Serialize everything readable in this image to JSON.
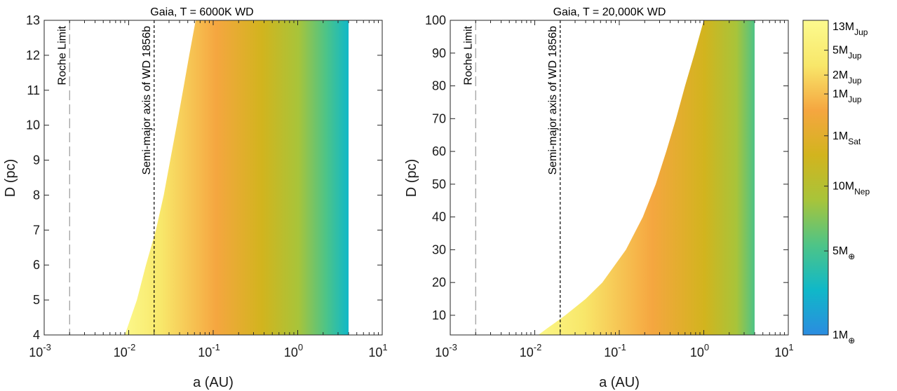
{
  "chart_data": [
    {
      "type": "heatmap",
      "title": "Gaia, T = 6000K WD",
      "xlabel": "a (AU)",
      "ylabel": "D (pc)",
      "xscale": "log",
      "xlim": [
        0.001,
        10
      ],
      "ylim": [
        4,
        13
      ],
      "xticks": [
        {
          "value": 0.001,
          "base": "10",
          "exp": "-3"
        },
        {
          "value": 0.01,
          "base": "10",
          "exp": "-2"
        },
        {
          "value": 0.1,
          "base": "10",
          "exp": "-1"
        },
        {
          "value": 1,
          "base": "10",
          "exp": "0"
        },
        {
          "value": 10,
          "base": "10",
          "exp": "1"
        }
      ],
      "yticks": [
        {
          "value": 4,
          "label": "4"
        },
        {
          "value": 5,
          "label": "5"
        },
        {
          "value": 6,
          "label": "6"
        },
        {
          "value": 7,
          "label": "7"
        },
        {
          "value": 8,
          "label": "8"
        },
        {
          "value": 9,
          "label": "9"
        },
        {
          "value": 10,
          "label": "10"
        },
        {
          "value": 11,
          "label": "11"
        },
        {
          "value": 12,
          "label": "12"
        },
        {
          "value": 13,
          "label": "13"
        }
      ],
      "filled_region": {
        "a_max": 4,
        "lower_boundary_a": [
          {
            "D": 4.0,
            "a": 0.009
          },
          {
            "D": 5.0,
            "a": 0.0125
          },
          {
            "D": 6.0,
            "a": 0.016
          },
          {
            "D": 7.0,
            "a": 0.021
          },
          {
            "D": 8.0,
            "a": 0.026
          },
          {
            "D": 9.0,
            "a": 0.031
          },
          {
            "D": 10.0,
            "a": 0.037
          },
          {
            "D": 11.0,
            "a": 0.044
          },
          {
            "D": 12.0,
            "a": 0.052
          },
          {
            "D": 13.0,
            "a": 0.062
          }
        ]
      },
      "vertical_lines": [
        {
          "x": 0.002,
          "label": "Roche Limit",
          "style": "long-dash",
          "color": "#999999"
        },
        {
          "x": 0.02,
          "label": "Semi-major axis of WD 1856b",
          "style": "short-dash",
          "color": "#000000"
        }
      ]
    },
    {
      "type": "heatmap",
      "title": "Gaia, T = 20,000K WD",
      "xlabel": "a (AU)",
      "ylabel": "D (pc)",
      "xscale": "log",
      "xlim": [
        0.001,
        10
      ],
      "ylim": [
        4,
        100
      ],
      "xticks": [
        {
          "value": 0.001,
          "base": "10",
          "exp": "-3"
        },
        {
          "value": 0.01,
          "base": "10",
          "exp": "-2"
        },
        {
          "value": 0.1,
          "base": "10",
          "exp": "-1"
        },
        {
          "value": 1,
          "base": "10",
          "exp": "0"
        },
        {
          "value": 10,
          "base": "10",
          "exp": "1"
        }
      ],
      "yticks": [
        {
          "value": 10,
          "label": "10"
        },
        {
          "value": 20,
          "label": "20"
        },
        {
          "value": 30,
          "label": "30"
        },
        {
          "value": 40,
          "label": "40"
        },
        {
          "value": 50,
          "label": "50"
        },
        {
          "value": 60,
          "label": "60"
        },
        {
          "value": 70,
          "label": "70"
        },
        {
          "value": 80,
          "label": "80"
        },
        {
          "value": 90,
          "label": "90"
        },
        {
          "value": 100,
          "label": "100"
        }
      ],
      "filled_region": {
        "a_max": 4,
        "lower_boundary_a": [
          {
            "D": 4,
            "a": 0.011
          },
          {
            "D": 6,
            "a": 0.014
          },
          {
            "D": 8,
            "a": 0.018
          },
          {
            "D": 10,
            "a": 0.023
          },
          {
            "D": 15,
            "a": 0.04
          },
          {
            "D": 20,
            "a": 0.063
          },
          {
            "D": 30,
            "a": 0.12
          },
          {
            "D": 40,
            "a": 0.19
          },
          {
            "D": 50,
            "a": 0.27
          },
          {
            "D": 60,
            "a": 0.36
          },
          {
            "D": 70,
            "a": 0.47
          },
          {
            "D": 80,
            "a": 0.6
          },
          {
            "D": 90,
            "a": 0.78
          },
          {
            "D": 100,
            "a": 1.0
          }
        ]
      },
      "vertical_lines": [
        {
          "x": 0.002,
          "label": "Roche Limit",
          "style": "long-dash",
          "color": "#999999"
        },
        {
          "x": 0.02,
          "label": "Semi-major axis of WD 1856b",
          "style": "short-dash",
          "color": "#000000"
        }
      ]
    }
  ],
  "colorbar": {
    "scale": "log",
    "colors": [
      "#2b8ce0",
      "#10b8c8",
      "#4ec487",
      "#a8c43a",
      "#d2b41e",
      "#f5a640",
      "#f8e76a",
      "#fcfa8e"
    ],
    "labels": [
      {
        "key": "13mjup",
        "main": "13M",
        "sub": "Jup",
        "sub_style": "subscript",
        "frac": 1.0
      },
      {
        "key": "5mjup",
        "main": "5M",
        "sub": "Jup",
        "sub_style": "subscript",
        "frac": 0.905
      },
      {
        "key": "2mjup",
        "main": "2M",
        "sub": "Jup",
        "sub_style": "subscript",
        "frac": 0.826
      },
      {
        "key": "1mjup",
        "main": "1M",
        "sub": "Jup",
        "sub_style": "subscript",
        "frac": 0.766
      },
      {
        "key": "1msat",
        "main": "1M",
        "sub": "Sat",
        "sub_style": "subscript",
        "frac": 0.633
      },
      {
        "key": "10mnep",
        "main": "10M",
        "sub": "Nep",
        "sub_style": "subscript",
        "frac": 0.473
      },
      {
        "key": "5mearth",
        "main": "5M",
        "sub": "⊕",
        "sub_style": "subscript",
        "frac": 0.267
      },
      {
        "key": "1mearth",
        "main": "1M",
        "sub": "⊕",
        "sub_style": "subscript",
        "frac": 0.0
      }
    ]
  }
}
